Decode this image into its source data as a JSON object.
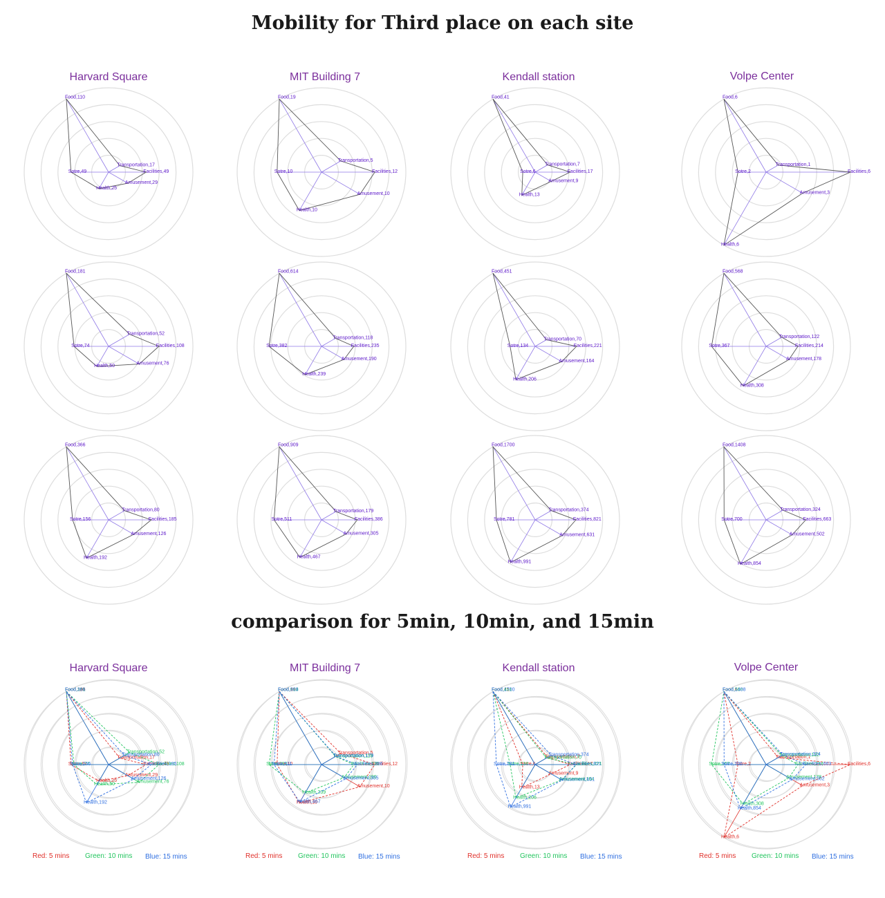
{
  "page": {
    "title_main": "Mobility for Third place on each site",
    "title_comparison": "comparison for 5min, 10min, and 15min"
  },
  "sites": [
    "Harvard Square",
    "MIT Building 7",
    "Kendall station",
    "Volpe Center"
  ],
  "legend": {
    "red": {
      "label": "Red: 5 mins",
      "color": "#e0302a"
    },
    "green": {
      "label": "Green: 10 mins",
      "color": "#22c55e"
    },
    "blue": {
      "label": "Blue: 15 mins",
      "color": "#2f6fe0"
    }
  },
  "colors": {
    "title": "#7b2f9c",
    "label": "#5a14c8",
    "outline": "#555555",
    "spoke": "#8f78e6",
    "ring": "#dddddd"
  },
  "chart_data": {
    "type": "radar",
    "axes": [
      "Food",
      "Transportation",
      "Facilities",
      "Amusement",
      "Health",
      "Sotre"
    ],
    "grid": true,
    "rows": [
      {
        "name": "5 mins",
        "sites": {
          "Harvard Square": [
            110,
            17,
            49,
            29,
            25,
            49
          ],
          "MIT Building 7": [
            19,
            5,
            12,
            10,
            10,
            10
          ],
          "Kendall station": [
            41,
            7,
            17,
            9,
            13,
            6
          ],
          "Volpe Center": [
            6,
            1,
            6,
            3,
            6,
            2
          ]
        }
      },
      {
        "name": "10 mins",
        "sites": {
          "Harvard Square": [
            181,
            52,
            108,
            76,
            50,
            74
          ],
          "MIT Building 7": [
            614,
            118,
            235,
            190,
            239,
            382
          ],
          "Kendall station": [
            451,
            70,
            221,
            164,
            206,
            134
          ],
          "Volpe Center": [
            568,
            122,
            214,
            178,
            308,
            367
          ]
        }
      },
      {
        "name": "15 mins",
        "sites": {
          "Harvard Square": [
            366,
            80,
            185,
            126,
            192,
            156
          ],
          "MIT Building 7": [
            909,
            179,
            386,
            305,
            467,
            511
          ],
          "Kendall station": [
            1700,
            374,
            821,
            631,
            991,
            781
          ],
          "Volpe Center": [
            1408,
            324,
            663,
            502,
            854,
            700
          ]
        }
      }
    ]
  }
}
